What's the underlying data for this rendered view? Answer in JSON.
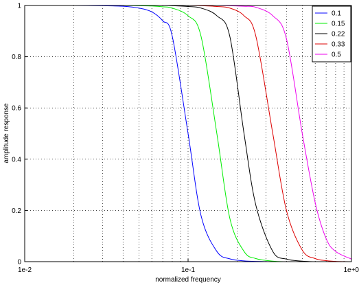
{
  "chart_data": {
    "type": "line",
    "xscale": "log",
    "xlim": [
      0.01,
      1
    ],
    "ylim": [
      0,
      1
    ],
    "xticks": [
      "1e-2",
      "1e-1",
      "1e+0"
    ],
    "yticks": [
      "0",
      "0.2",
      "0.4",
      "0.6",
      "0.8",
      "1"
    ],
    "xlabel": "normalized frequency",
    "ylabel": "amplitude response",
    "grid": true,
    "legend_position": "top-right",
    "x": [
      0.01,
      0.02,
      0.03,
      0.04,
      0.05,
      0.06,
      0.07,
      0.08,
      0.1,
      0.12,
      0.15,
      0.18,
      0.22,
      0.26,
      0.33,
      0.4,
      0.5,
      0.6,
      0.7,
      0.8,
      1.0
    ],
    "series": [
      {
        "name": "0.1",
        "color": "#0000ff",
        "values": [
          1.0,
          1.0,
          0.999,
          0.997,
          0.99,
          0.975,
          0.94,
          0.88,
          0.5,
          0.18,
          0.04,
          0.011,
          0.003,
          0.001,
          0.0,
          0.0,
          0.0,
          0.0,
          0.0,
          0.0,
          0.0
        ]
      },
      {
        "name": "0.15",
        "color": "#00ee00",
        "values": [
          1.0,
          1.0,
          1.0,
          1.0,
          0.999,
          0.998,
          0.995,
          0.99,
          0.96,
          0.88,
          0.5,
          0.17,
          0.04,
          0.012,
          0.002,
          0.0,
          0.0,
          0.0,
          0.0,
          0.0,
          0.0
        ]
      },
      {
        "name": "0.22",
        "color": "#000000",
        "values": [
          1.0,
          1.0,
          1.0,
          1.0,
          1.0,
          1.0,
          1.0,
          0.999,
          0.996,
          0.99,
          0.96,
          0.88,
          0.5,
          0.22,
          0.04,
          0.01,
          0.002,
          0.0,
          0.0,
          0.0,
          0.0
        ]
      },
      {
        "name": "0.33",
        "color": "#dd0000",
        "values": [
          1.0,
          1.0,
          1.0,
          1.0,
          1.0,
          1.0,
          1.0,
          1.0,
          1.0,
          0.999,
          0.996,
          0.99,
          0.96,
          0.88,
          0.5,
          0.2,
          0.045,
          0.012,
          0.004,
          0.001,
          0.0
        ]
      },
      {
        "name": "0.5",
        "color": "#ee00ee",
        "values": [
          1.0,
          1.0,
          1.0,
          1.0,
          1.0,
          1.0,
          1.0,
          1.0,
          1.0,
          1.0,
          1.0,
          0.999,
          0.997,
          0.993,
          0.96,
          0.87,
          0.5,
          0.23,
          0.09,
          0.04,
          0.01
        ]
      }
    ]
  }
}
